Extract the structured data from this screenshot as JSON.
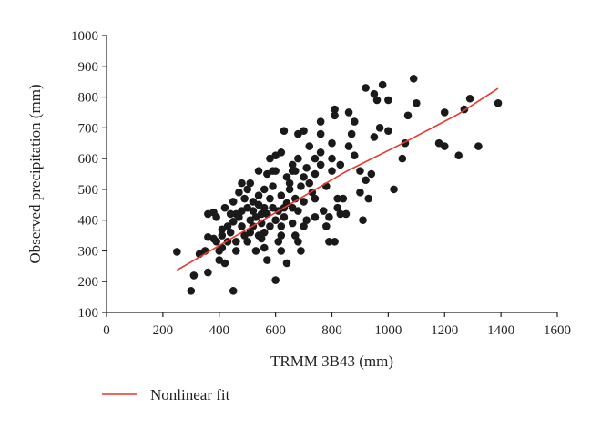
{
  "chart_data": {
    "type": "scatter",
    "title": "",
    "xlabel": "TRMM 3B43 (mm)",
    "ylabel": "Observed precipitation (mm)",
    "xlim": [
      0,
      1600
    ],
    "ylim": [
      100,
      1000
    ],
    "xticks": [
      0,
      200,
      400,
      600,
      800,
      1000,
      1200,
      1400,
      1600
    ],
    "yticks": [
      100,
      200,
      300,
      400,
      500,
      600,
      700,
      800,
      900,
      1000
    ],
    "grid": false,
    "legend": {
      "placement": "bottom-left",
      "entries": [
        "Nonlinear fit"
      ]
    },
    "colors": {
      "points": "#1a1a1a",
      "fit": "#e8372c",
      "axis": "#222222"
    },
    "series": [
      {
        "kind": "scatter",
        "points": [
          [
            250,
            297
          ],
          [
            300,
            170
          ],
          [
            310,
            220
          ],
          [
            330,
            290
          ],
          [
            360,
            230
          ],
          [
            360,
            345
          ],
          [
            360,
            420
          ],
          [
            380,
            425
          ],
          [
            390,
            410
          ],
          [
            390,
            330
          ],
          [
            400,
            300
          ],
          [
            400,
            270
          ],
          [
            410,
            350
          ],
          [
            410,
            370
          ],
          [
            420,
            440
          ],
          [
            420,
            260
          ],
          [
            430,
            330
          ],
          [
            440,
            360
          ],
          [
            440,
            420
          ],
          [
            450,
            170
          ],
          [
            450,
            395
          ],
          [
            450,
            460
          ],
          [
            460,
            330
          ],
          [
            460,
            300
          ],
          [
            470,
            410
          ],
          [
            470,
            490
          ],
          [
            480,
            430
          ],
          [
            480,
            380
          ],
          [
            490,
            350
          ],
          [
            490,
            470
          ],
          [
            500,
            500
          ],
          [
            500,
            440
          ],
          [
            500,
            330
          ],
          [
            510,
            520
          ],
          [
            510,
            400
          ],
          [
            510,
            360
          ],
          [
            520,
            380
          ],
          [
            520,
            460
          ],
          [
            530,
            300
          ],
          [
            530,
            410
          ],
          [
            540,
            450
          ],
          [
            540,
            480
          ],
          [
            540,
            350
          ],
          [
            550,
            390
          ],
          [
            550,
            420
          ],
          [
            550,
            340
          ],
          [
            560,
            360
          ],
          [
            560,
            440
          ],
          [
            560,
            500
          ],
          [
            570,
            270
          ],
          [
            570,
            550
          ],
          [
            570,
            420
          ],
          [
            580,
            470
          ],
          [
            580,
            380
          ],
          [
            590,
            510
          ],
          [
            590,
            440
          ],
          [
            600,
            400
          ],
          [
            600,
            560
          ],
          [
            600,
            205
          ],
          [
            610,
            430
          ],
          [
            610,
            330
          ],
          [
            620,
            350
          ],
          [
            620,
            480
          ],
          [
            620,
            380
          ],
          [
            630,
            410
          ],
          [
            630,
            440
          ],
          [
            630,
            690
          ],
          [
            640,
            540
          ],
          [
            640,
            260
          ],
          [
            640,
            455
          ],
          [
            650,
            520
          ],
          [
            650,
            500
          ],
          [
            660,
            580
          ],
          [
            660,
            440
          ],
          [
            660,
            390
          ],
          [
            670,
            350
          ],
          [
            670,
            470
          ],
          [
            670,
            560
          ],
          [
            680,
            680
          ],
          [
            680,
            600
          ],
          [
            680,
            430
          ],
          [
            690,
            510
          ],
          [
            690,
            300
          ],
          [
            700,
            460
          ],
          [
            700,
            540
          ],
          [
            710,
            400
          ],
          [
            710,
            570
          ],
          [
            720,
            520
          ],
          [
            730,
            490
          ],
          [
            740,
            550
          ],
          [
            740,
            600
          ],
          [
            760,
            680
          ],
          [
            760,
            620
          ],
          [
            770,
            430
          ],
          [
            780,
            510
          ],
          [
            790,
            330
          ],
          [
            790,
            410
          ],
          [
            800,
            600
          ],
          [
            800,
            650
          ],
          [
            800,
            560
          ],
          [
            810,
            740
          ],
          [
            810,
            760
          ],
          [
            810,
            330
          ],
          [
            820,
            440
          ],
          [
            830,
            580
          ],
          [
            840,
            470
          ],
          [
            850,
            420
          ],
          [
            860,
            640
          ],
          [
            870,
            680
          ],
          [
            880,
            720
          ],
          [
            900,
            490
          ],
          [
            910,
            400
          ],
          [
            920,
            530
          ],
          [
            930,
            470
          ],
          [
            940,
            550
          ],
          [
            950,
            670
          ],
          [
            960,
            790
          ],
          [
            970,
            700
          ],
          [
            1000,
            690
          ],
          [
            1020,
            500
          ],
          [
            1050,
            600
          ],
          [
            1060,
            650
          ],
          [
            1070,
            740
          ],
          [
            1090,
            860
          ],
          [
            1100,
            780
          ],
          [
            1180,
            650
          ],
          [
            1200,
            640
          ],
          [
            1200,
            750
          ],
          [
            1250,
            610
          ],
          [
            1270,
            760
          ],
          [
            1290,
            795
          ],
          [
            1320,
            640
          ],
          [
            1390,
            780
          ],
          [
            720,
            640
          ],
          [
            700,
            690
          ],
          [
            660,
            560
          ],
          [
            590,
            560
          ],
          [
            480,
            520
          ],
          [
            540,
            560
          ],
          [
            600,
            610
          ],
          [
            760,
            720
          ],
          [
            860,
            750
          ],
          [
            920,
            830
          ],
          [
            950,
            810
          ],
          [
            980,
            840
          ],
          [
            1000,
            790
          ],
          [
            900,
            560
          ],
          [
            880,
            610
          ],
          [
            760,
            580
          ],
          [
            740,
            470
          ],
          [
            820,
            470
          ],
          [
            620,
            620
          ],
          [
            580,
            600
          ],
          [
            520,
            430
          ],
          [
            460,
            420
          ],
          [
            430,
            380
          ],
          [
            410,
            310
          ],
          [
            380,
            340
          ],
          [
            350,
            300
          ],
          [
            560,
            310
          ],
          [
            620,
            300
          ],
          [
            680,
            330
          ],
          [
            700,
            380
          ],
          [
            740,
            410
          ],
          [
            780,
            380
          ],
          [
            830,
            420
          ]
        ]
      }
    ],
    "fit": {
      "name": "Nonlinear fit",
      "kind": "line",
      "points": [
        [
          250,
          237
        ],
        [
          450,
          344
        ],
        [
          650,
          451
        ],
        [
          850,
          558
        ],
        [
          1050,
          649
        ],
        [
          1250,
          745
        ],
        [
          1390,
          828
        ]
      ]
    }
  }
}
